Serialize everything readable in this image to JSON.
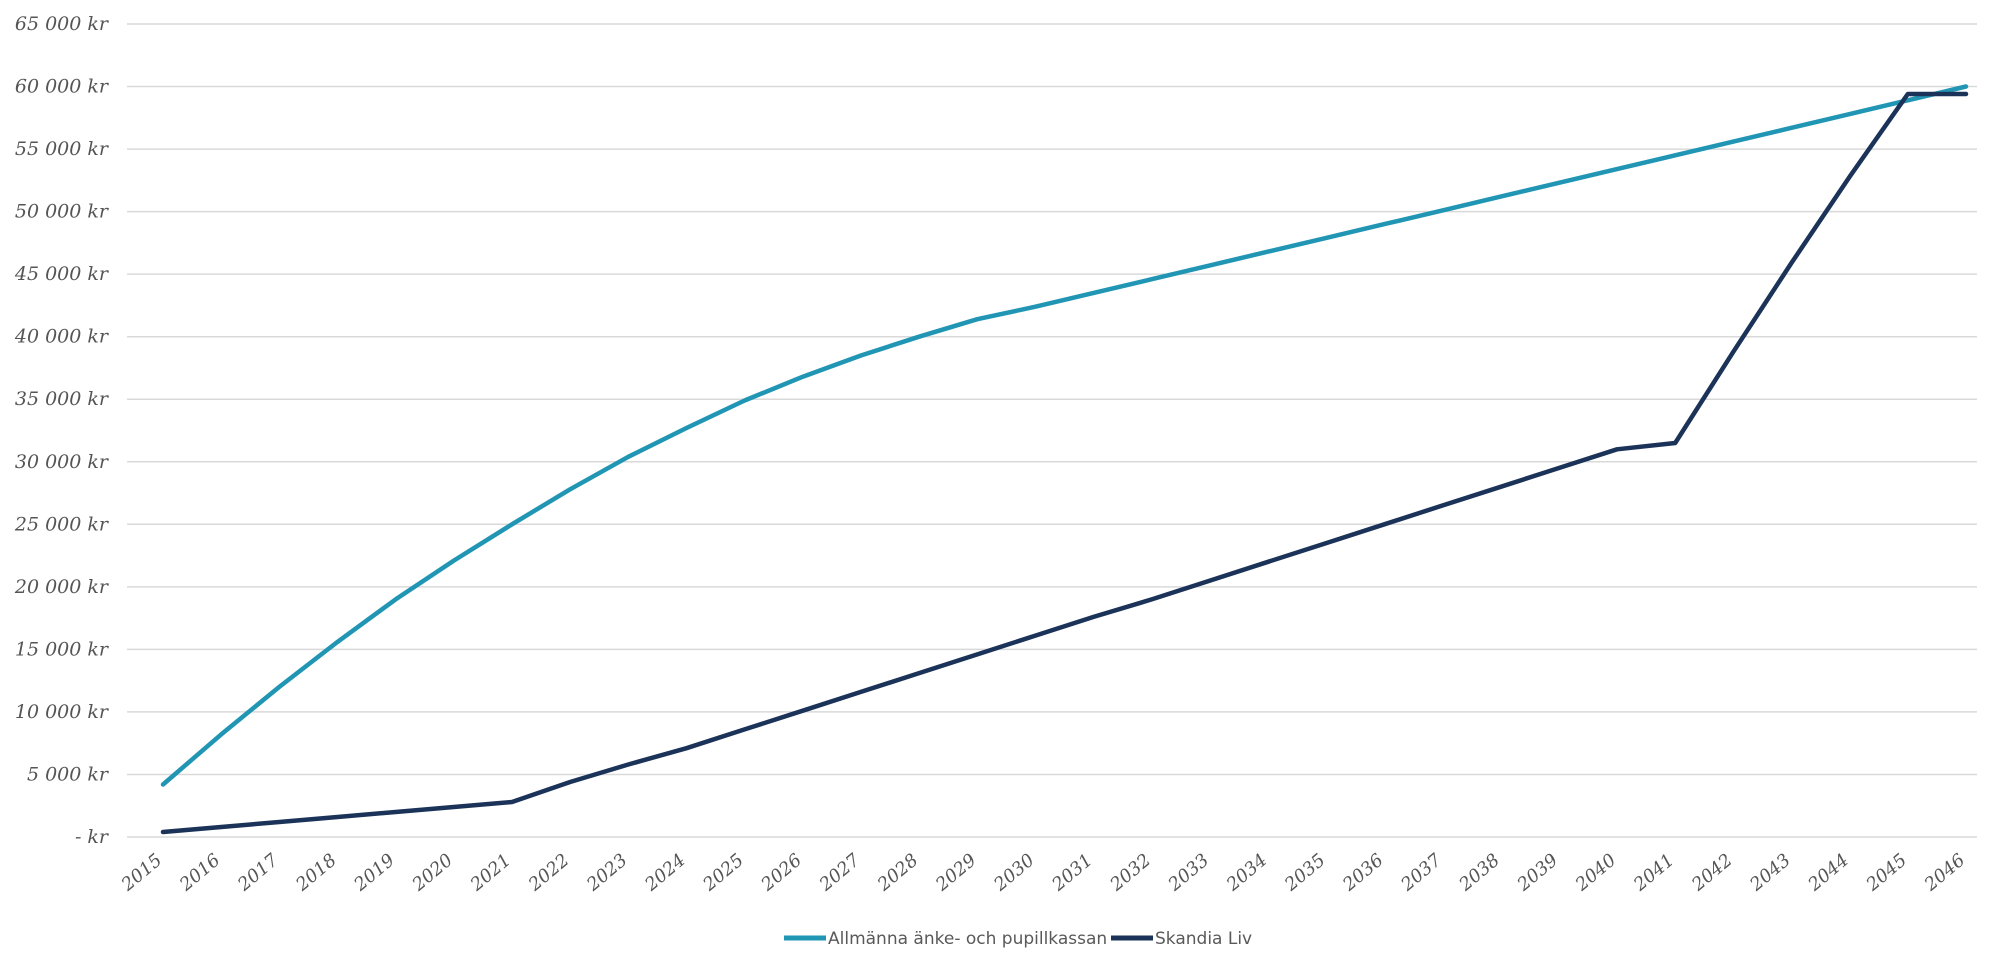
{
  "chart_data": {
    "type": "line",
    "title": "",
    "xlabel": "",
    "ylabel": "",
    "ylim": [
      0,
      65000
    ],
    "grid": "horizontal",
    "legend_position": "bottom",
    "y_tick_labels": [
      "-  kr",
      "5 000 kr",
      "10 000 kr",
      "15 000 kr",
      "20 000 kr",
      "25 000 kr",
      "30 000 kr",
      "35 000 kr",
      "40 000 kr",
      "45 000 kr",
      "50 000 kr",
      "55 000 kr",
      "60 000 kr",
      "65 000 kr"
    ],
    "y_tick_values": [
      0,
      5000,
      10000,
      15000,
      20000,
      25000,
      30000,
      35000,
      40000,
      45000,
      50000,
      55000,
      60000,
      65000
    ],
    "categories": [
      "2015",
      "2016",
      "2017",
      "2018",
      "2019",
      "2020",
      "2021",
      "2022",
      "2023",
      "2024",
      "2025",
      "2026",
      "2027",
      "2028",
      "2029",
      "2030",
      "2031",
      "2032",
      "2033",
      "2034",
      "2035",
      "2036",
      "2037",
      "2038",
      "2039",
      "2040",
      "2041",
      "2042",
      "2043",
      "2044",
      "2045",
      "2046"
    ],
    "series": [
      {
        "name": "Allmänna änke- och pupillkassan",
        "color": "#2196B4",
        "values": [
          4200,
          8200,
          12000,
          15600,
          19000,
          22100,
          25000,
          27800,
          30400,
          32700,
          34900,
          36800,
          38500,
          40000,
          41400,
          42400,
          43500,
          44600,
          45700,
          46800,
          47900,
          49000,
          50100,
          51200,
          52300,
          53400,
          54500,
          55600,
          56700,
          57800,
          58900,
          60000
        ]
      },
      {
        "name": "Skandia Liv",
        "color": "#1B3358",
        "values": [
          400,
          800,
          1200,
          1600,
          2000,
          2400,
          2800,
          4400,
          5800,
          7100,
          8600,
          10100,
          11600,
          13100,
          14600,
          16100,
          17600,
          19000,
          20500,
          22000,
          23500,
          25000,
          26500,
          28000,
          29500,
          31000,
          31500,
          38800,
          45900,
          52800,
          59400,
          59400
        ]
      }
    ]
  }
}
